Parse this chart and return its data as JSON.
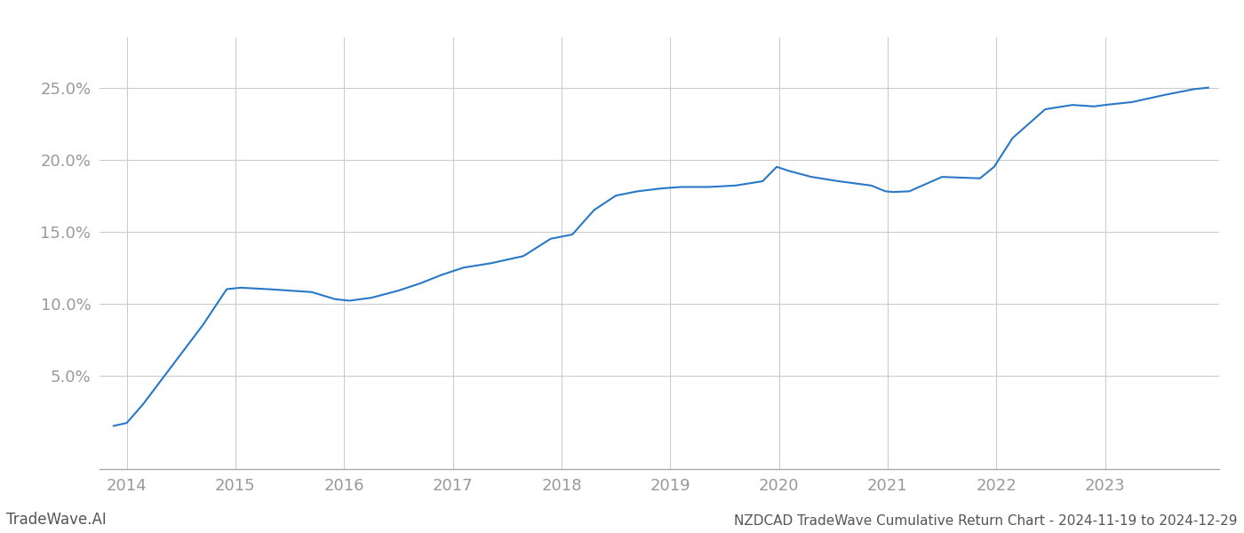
{
  "title": "NZDCAD TradeWave Cumulative Return Chart - 2024-11-19 to 2024-12-29",
  "watermark": "TradeWave.AI",
  "line_color": "#2878c8",
  "line_width": 1.5,
  "background_color": "#ffffff",
  "grid_color": "#cccccc",
  "x_values": [
    2013.88,
    2014.0,
    2014.15,
    2014.4,
    2014.7,
    2014.92,
    2015.05,
    2015.3,
    2015.7,
    2015.92,
    2016.05,
    2016.25,
    2016.5,
    2016.7,
    2016.9,
    2017.1,
    2017.35,
    2017.65,
    2017.9,
    2018.1,
    2018.3,
    2018.5,
    2018.7,
    2018.92,
    2019.1,
    2019.35,
    2019.6,
    2019.85,
    2019.98,
    2020.1,
    2020.3,
    2020.55,
    2020.85,
    2020.98,
    2021.05,
    2021.2,
    2021.5,
    2021.85,
    2021.98,
    2022.15,
    2022.45,
    2022.7,
    2022.9,
    2023.0,
    2023.25,
    2023.55,
    2023.82,
    2023.95
  ],
  "y_values": [
    1.5,
    1.7,
    3.0,
    5.5,
    8.5,
    11.0,
    11.1,
    11.0,
    10.8,
    10.3,
    10.2,
    10.4,
    10.9,
    11.4,
    12.0,
    12.5,
    12.8,
    13.3,
    14.5,
    14.8,
    16.5,
    17.5,
    17.8,
    18.0,
    18.1,
    18.1,
    18.2,
    18.5,
    19.5,
    19.2,
    18.8,
    18.5,
    18.2,
    17.8,
    17.75,
    17.8,
    18.8,
    18.7,
    19.5,
    21.5,
    23.5,
    23.8,
    23.7,
    23.8,
    24.0,
    24.5,
    24.9,
    25.0
  ],
  "xlim": [
    2013.75,
    2024.05
  ],
  "ylim": [
    -1.5,
    28.5
  ],
  "yticks": [
    5.0,
    10.0,
    15.0,
    20.0,
    25.0
  ],
  "ytick_labels": [
    "5.0%",
    "10.0%",
    "15.0%",
    "20.0%",
    "25.0%"
  ],
  "xticks": [
    2014,
    2015,
    2016,
    2017,
    2018,
    2019,
    2020,
    2021,
    2022,
    2023
  ],
  "xtick_labels": [
    "2014",
    "2015",
    "2016",
    "2017",
    "2018",
    "2019",
    "2020",
    "2021",
    "2022",
    "2023"
  ],
  "tick_color": "#aaaaaa",
  "label_color": "#999999",
  "title_color": "#555555",
  "watermark_color": "#555555",
  "title_fontsize": 11,
  "watermark_fontsize": 12,
  "tick_fontsize": 13
}
